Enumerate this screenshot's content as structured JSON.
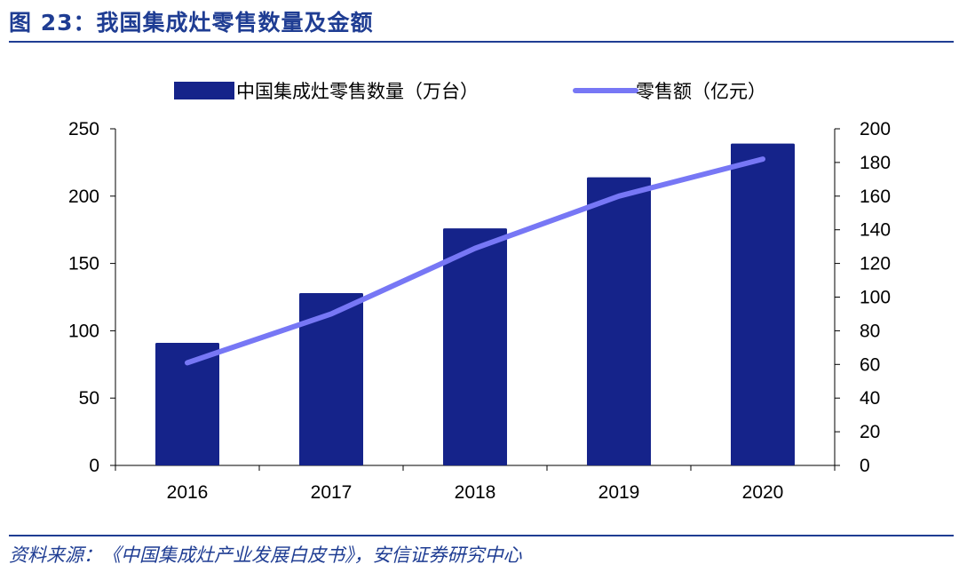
{
  "header": {
    "title": "图 23：我国集成灶零售数量及金额"
  },
  "footer": {
    "source": "资料来源：《中国集成灶产业发展白皮书》，安信证券研究中心"
  },
  "chart_data": {
    "type": "bar",
    "categories": [
      "2016",
      "2017",
      "2018",
      "2019",
      "2020"
    ],
    "series": [
      {
        "name": "中国集成灶零售数量（万台）",
        "type": "bar",
        "axis": "left",
        "color": "#15238a",
        "values": [
          91,
          128,
          176,
          214,
          239
        ]
      },
      {
        "name": "零售额（亿元）",
        "type": "line",
        "axis": "right",
        "color": "#7777f5",
        "values": [
          61,
          90,
          129,
          160,
          182
        ]
      }
    ],
    "y_left": {
      "min": 0,
      "max": 250,
      "step": 50,
      "ticks": [
        "0",
        "50",
        "100",
        "150",
        "200",
        "250"
      ]
    },
    "y_right": {
      "min": 0,
      "max": 200,
      "step": 20,
      "ticks": [
        "0",
        "20",
        "40",
        "60",
        "80",
        "100",
        "120",
        "140",
        "160",
        "180",
        "200"
      ]
    },
    "legend": "top"
  }
}
